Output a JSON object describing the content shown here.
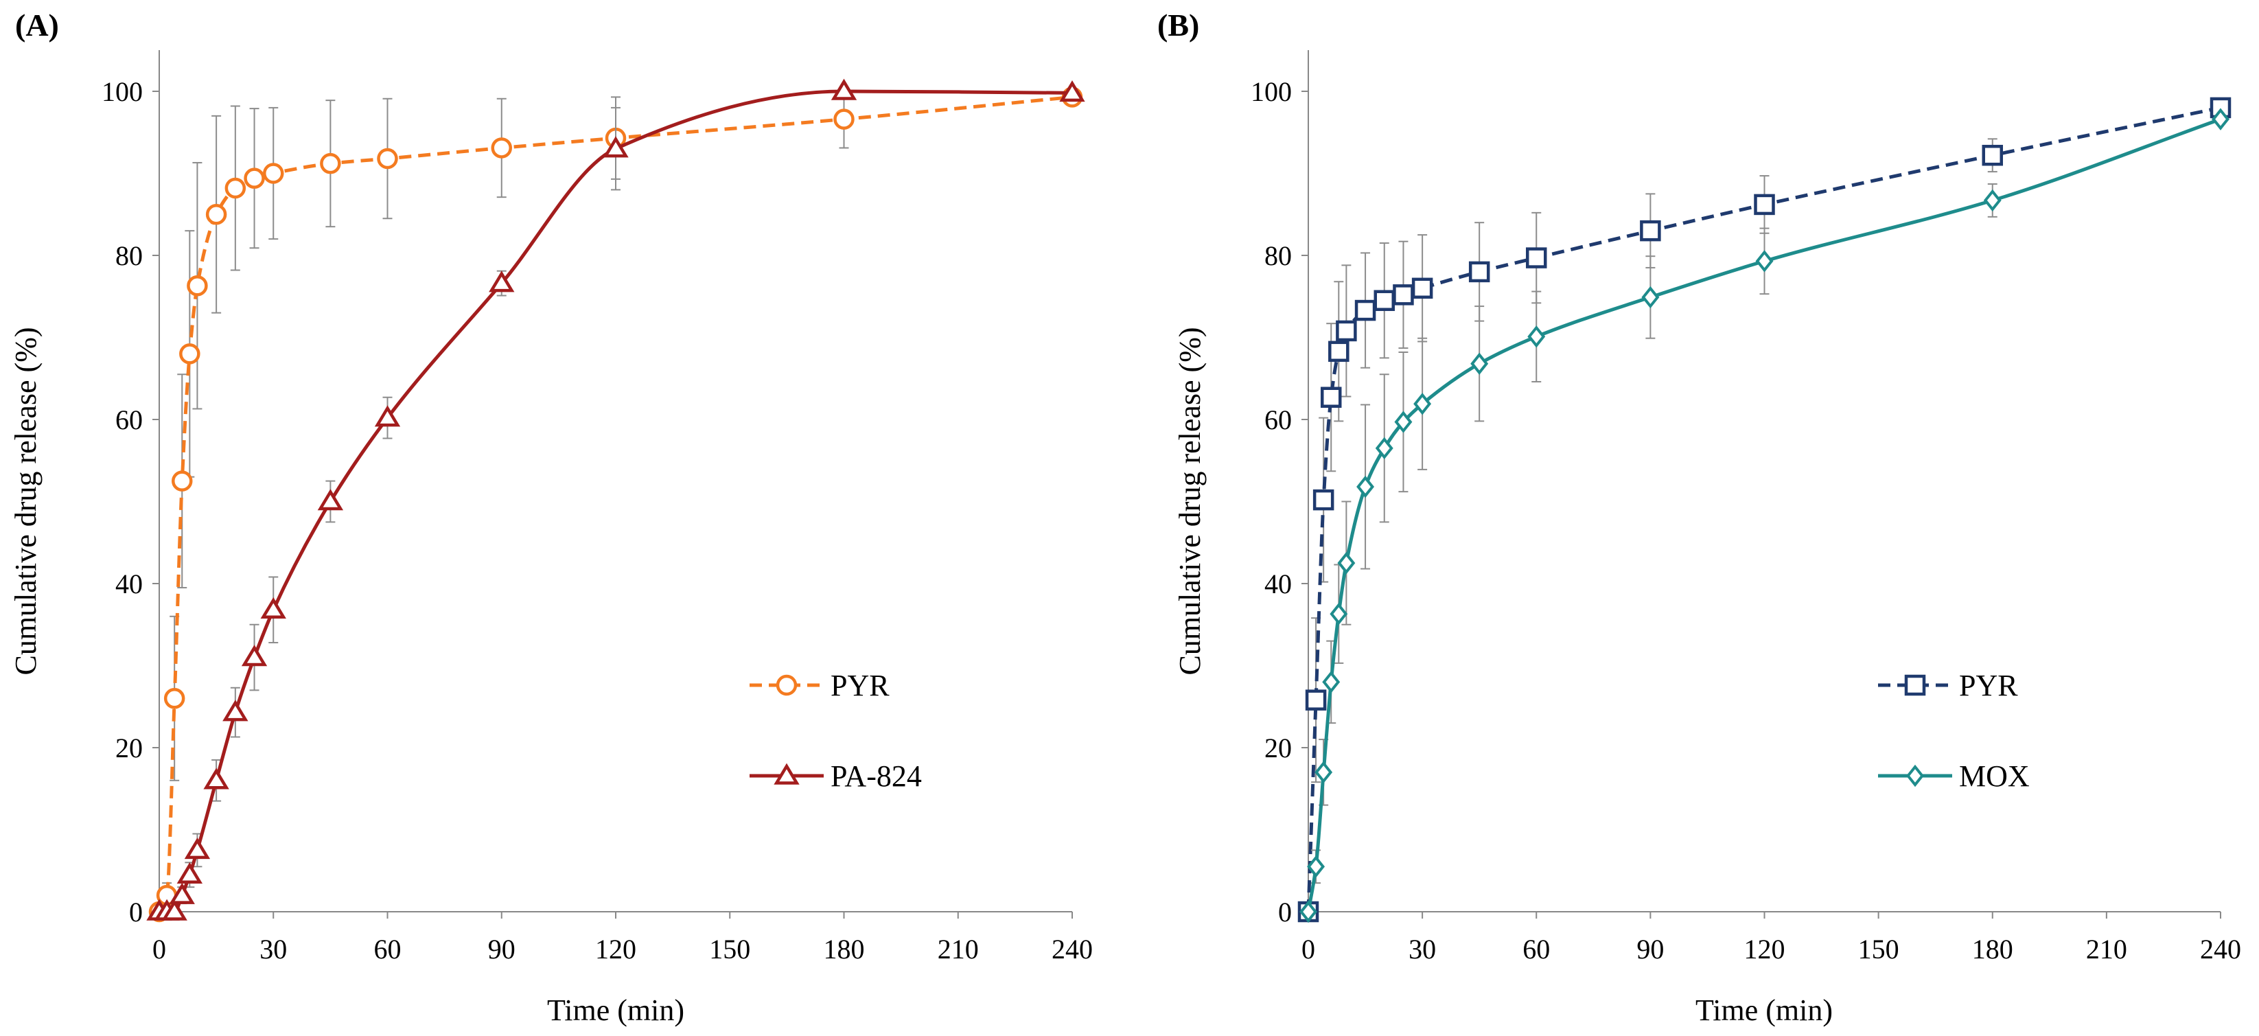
{
  "chart_data": [
    {
      "panel_label": "(A)",
      "type": "line",
      "xlabel": "Time (min)",
      "ylabel": "Cumulative drug release (%)",
      "xlim": [
        0,
        240
      ],
      "ylim": [
        0,
        100
      ],
      "xticks": [
        0,
        30,
        60,
        90,
        120,
        150,
        180,
        210,
        240
      ],
      "yticks": [
        0,
        20,
        40,
        60,
        80,
        100
      ],
      "grid": false,
      "legend_position": "lower-right",
      "series": [
        {
          "name": "PYR",
          "color": "#F47B20",
          "marker": "circle",
          "line_style": "dashed",
          "x": [
            0,
            2,
            4,
            6,
            8,
            10,
            15,
            20,
            25,
            30,
            45,
            60,
            90,
            120,
            180,
            240
          ],
          "y": [
            0,
            2,
            26,
            52.5,
            68,
            76.3,
            85,
            88.2,
            89.4,
            90,
            91.2,
            91.8,
            93.1,
            94.3,
            96.6,
            99.3
          ],
          "err": [
            0,
            1.5,
            10,
            13,
            15,
            15,
            12,
            10,
            8.5,
            8,
            7.7,
            7.3,
            6,
            5,
            3.5,
            1
          ]
        },
        {
          "name": "PA-824",
          "color": "#A31D1D",
          "marker": "triangle",
          "line_style": "solid",
          "x": [
            0,
            2,
            4,
            6,
            8,
            10,
            15,
            20,
            25,
            30,
            45,
            60,
            90,
            120,
            180,
            240
          ],
          "y": [
            0,
            0,
            0,
            2,
            4.5,
            7.5,
            16,
            24.3,
            31,
            36.8,
            50,
            60.2,
            76.6,
            93,
            100,
            99.8
          ],
          "err": [
            0,
            0,
            0,
            1,
            1.5,
            2,
            2.5,
            3,
            4,
            4,
            2.5,
            2.5,
            1.5,
            5,
            0.5,
            0.5
          ]
        }
      ]
    },
    {
      "panel_label": "(B)",
      "type": "line",
      "xlabel": "Time (min)",
      "ylabel": "Cumulative drug release (%)",
      "xlim": [
        0,
        240
      ],
      "ylim": [
        0,
        100
      ],
      "xticks": [
        0,
        30,
        60,
        90,
        120,
        150,
        180,
        210,
        240
      ],
      "yticks": [
        0,
        20,
        40,
        60,
        80,
        100
      ],
      "grid": false,
      "legend_position": "lower-right",
      "series": [
        {
          "name": "PYR",
          "color": "#1F3A6E",
          "marker": "square",
          "line_style": "dashed",
          "x": [
            0,
            2,
            4,
            6,
            8,
            10,
            15,
            20,
            25,
            30,
            45,
            60,
            90,
            120,
            180,
            240
          ],
          "y": [
            0,
            25.8,
            50.2,
            62.7,
            68.3,
            70.8,
            73.3,
            74.5,
            75.2,
            76,
            78,
            79.7,
            83,
            86.2,
            92.2,
            98
          ],
          "err": [
            0,
            10,
            10,
            9,
            8.5,
            8,
            7,
            7,
            6.5,
            6.5,
            6,
            5.5,
            4.5,
            3.5,
            2,
            0.5
          ]
        },
        {
          "name": "MOX",
          "color": "#1E8C8C",
          "marker": "diamond",
          "line_style": "solid",
          "x": [
            0,
            2,
            4,
            6,
            8,
            10,
            15,
            20,
            25,
            30,
            45,
            60,
            90,
            120,
            180,
            240
          ],
          "y": [
            0,
            5.5,
            17,
            28,
            36.3,
            42.5,
            51.8,
            56.5,
            59.7,
            61.9,
            66.8,
            70.1,
            74.9,
            79.3,
            86.7,
            96.6
          ],
          "err": [
            0,
            2,
            4,
            5,
            6,
            7.5,
            10,
            9,
            8.5,
            8,
            7,
            5.5,
            5,
            4,
            2,
            0.5
          ]
        }
      ]
    }
  ]
}
